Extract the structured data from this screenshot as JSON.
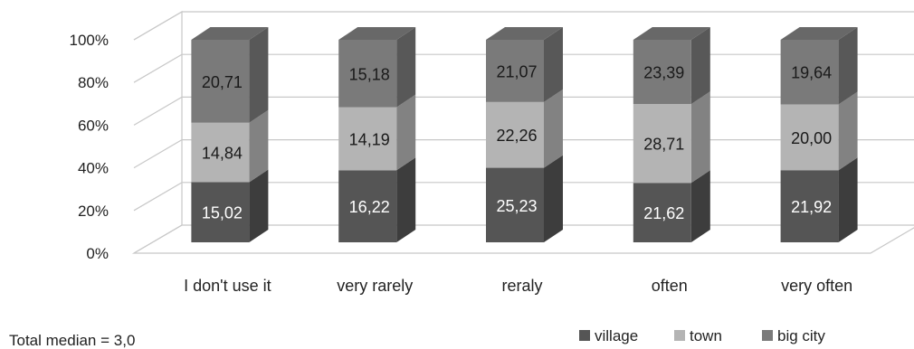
{
  "chart_data": {
    "type": "bar",
    "stacked": true,
    "percent_stacked": true,
    "three_d": true,
    "categories": [
      "I don't use it",
      "very rarely",
      "reraly",
      "often",
      "very often"
    ],
    "series": [
      {
        "name": "village",
        "values": [
          15.02,
          16.22,
          25.23,
          21.62,
          21.92
        ],
        "labels": [
          "15,02",
          "16,22",
          "25,23",
          "21,62",
          "21,92"
        ],
        "color": "#555555"
      },
      {
        "name": "town",
        "values": [
          14.84,
          14.19,
          22.26,
          28.71,
          20.0
        ],
        "labels": [
          "14,84",
          "14,19",
          "22,26",
          "28,71",
          "20,00"
        ],
        "color": "#b4b4b4"
      },
      {
        "name": "big city",
        "values": [
          20.71,
          15.18,
          21.07,
          23.39,
          19.64
        ],
        "labels": [
          "20,71",
          "15,18",
          "21,07",
          "23,39",
          "19,64"
        ],
        "color": "#7a7a7a"
      }
    ],
    "y_ticks": [
      "0%",
      "20%",
      "40%",
      "60%",
      "80%",
      "100%"
    ],
    "ylim": [
      0,
      100
    ],
    "grid": true,
    "legend_position": "bottom-right"
  },
  "note": "Total median = 3,0"
}
